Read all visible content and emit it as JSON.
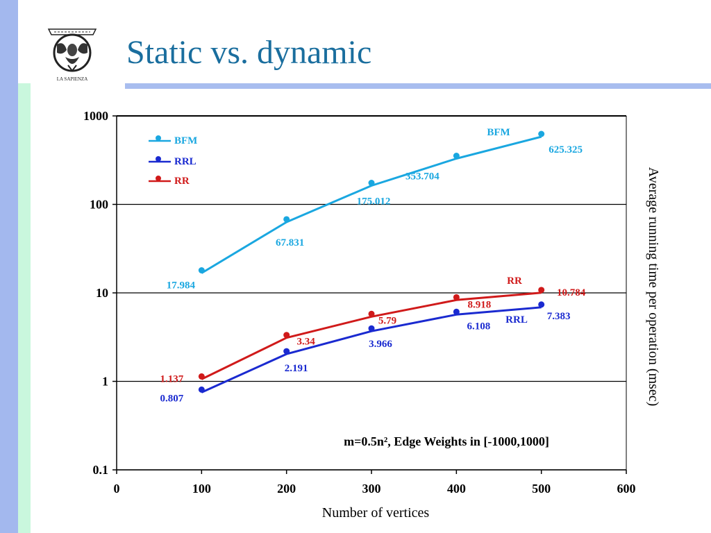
{
  "slide": {
    "title": "Static vs. dynamic",
    "logo_text": "LA SAPIENZA",
    "logo_motto": "STVDIVM VRBIS"
  },
  "colors": {
    "title": "#1a6e9e",
    "BFM": "#1aa7e0",
    "RRL": "#1a2ad0",
    "RR": "#d01a1a",
    "left_strip": "#a3b8ee",
    "green_strip": "#c9f7dd"
  },
  "chart_data": {
    "type": "line",
    "title": "",
    "xlabel": "Number of vertices",
    "ylabel": "Average running time per operation (msec)",
    "annotation": "m=0.5n², Edge Weights in [-1000,1000]",
    "xlim": [
      0,
      600
    ],
    "ylim": [
      0.1,
      1000
    ],
    "yscale": "log",
    "x_ticks": [
      "0",
      "100",
      "200",
      "300",
      "400",
      "500",
      "600"
    ],
    "y_ticks": [
      "0.1",
      "1",
      "10",
      "100",
      "1000"
    ],
    "grid": "horizontal at decades",
    "legend_position": "top-left",
    "series": [
      {
        "name": "BFM",
        "color": "#1aa7e0",
        "x": [
          100,
          200,
          300,
          400,
          500
        ],
        "y": [
          17.984,
          67.831,
          175.012,
          353.704,
          625.325
        ],
        "labels": [
          "17.984",
          "67.831",
          "175.012",
          "353.704",
          "625.325"
        ]
      },
      {
        "name": "RRL",
        "color": "#1a2ad0",
        "x": [
          100,
          200,
          300,
          400,
          500
        ],
        "y": [
          0.807,
          2.191,
          3.966,
          6.108,
          7.383
        ],
        "labels": [
          "0.807",
          "2.191",
          "3.966",
          "6.108",
          "7.383"
        ]
      },
      {
        "name": "RR",
        "color": "#d01a1a",
        "x": [
          100,
          200,
          300,
          400,
          500
        ],
        "y": [
          1.137,
          3.34,
          5.79,
          8.918,
          10.784
        ],
        "labels": [
          "1.137",
          "3.34",
          "5.79",
          "8.918",
          "10.784"
        ]
      }
    ]
  }
}
